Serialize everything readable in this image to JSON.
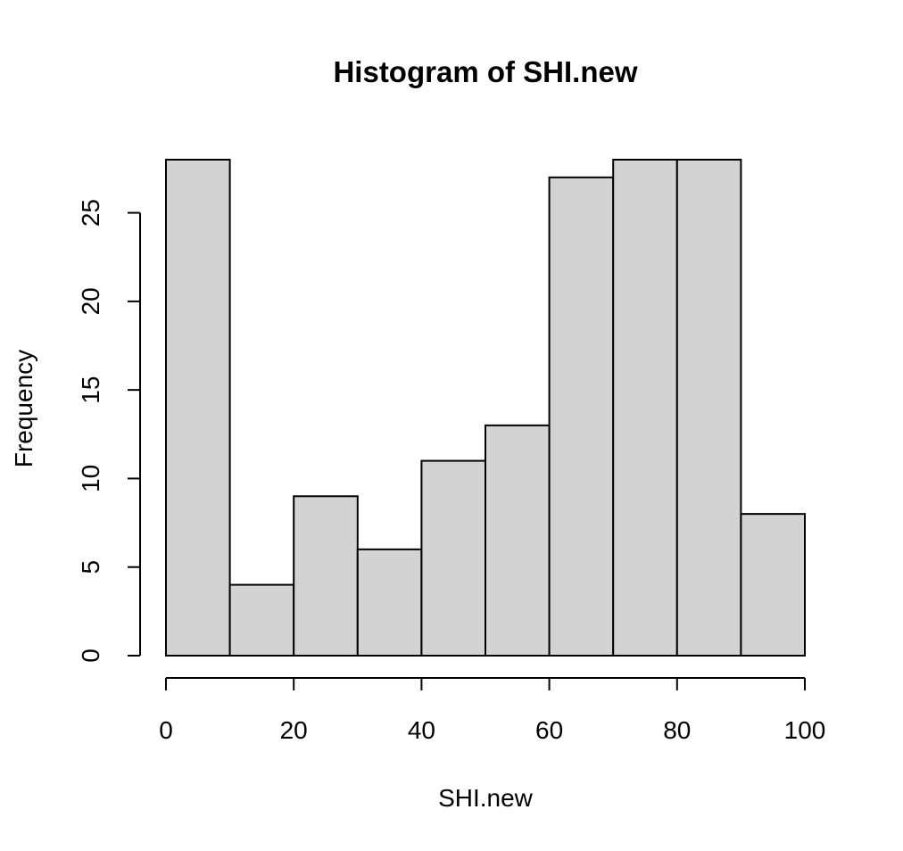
{
  "chart_data": {
    "type": "bar",
    "title": "Histogram of SHI.new",
    "xlabel": "SHI.new",
    "ylabel": "Frequency",
    "bins": [
      {
        "start": 0,
        "end": 10,
        "count": 28
      },
      {
        "start": 10,
        "end": 20,
        "count": 4
      },
      {
        "start": 20,
        "end": 30,
        "count": 9
      },
      {
        "start": 30,
        "end": 40,
        "count": 6
      },
      {
        "start": 40,
        "end": 50,
        "count": 11
      },
      {
        "start": 50,
        "end": 60,
        "count": 13
      },
      {
        "start": 60,
        "end": 70,
        "count": 27
      },
      {
        "start": 70,
        "end": 80,
        "count": 28
      },
      {
        "start": 80,
        "end": 90,
        "count": 28
      },
      {
        "start": 90,
        "end": 100,
        "count": 8
      }
    ],
    "xlim": [
      0,
      100
    ],
    "ylim": [
      0,
      28
    ],
    "x_ticks": [
      0,
      20,
      40,
      60,
      80,
      100
    ],
    "y_ticks": [
      0,
      5,
      10,
      15,
      20,
      25
    ],
    "bar_color": "#d3d3d3",
    "grid": false
  }
}
